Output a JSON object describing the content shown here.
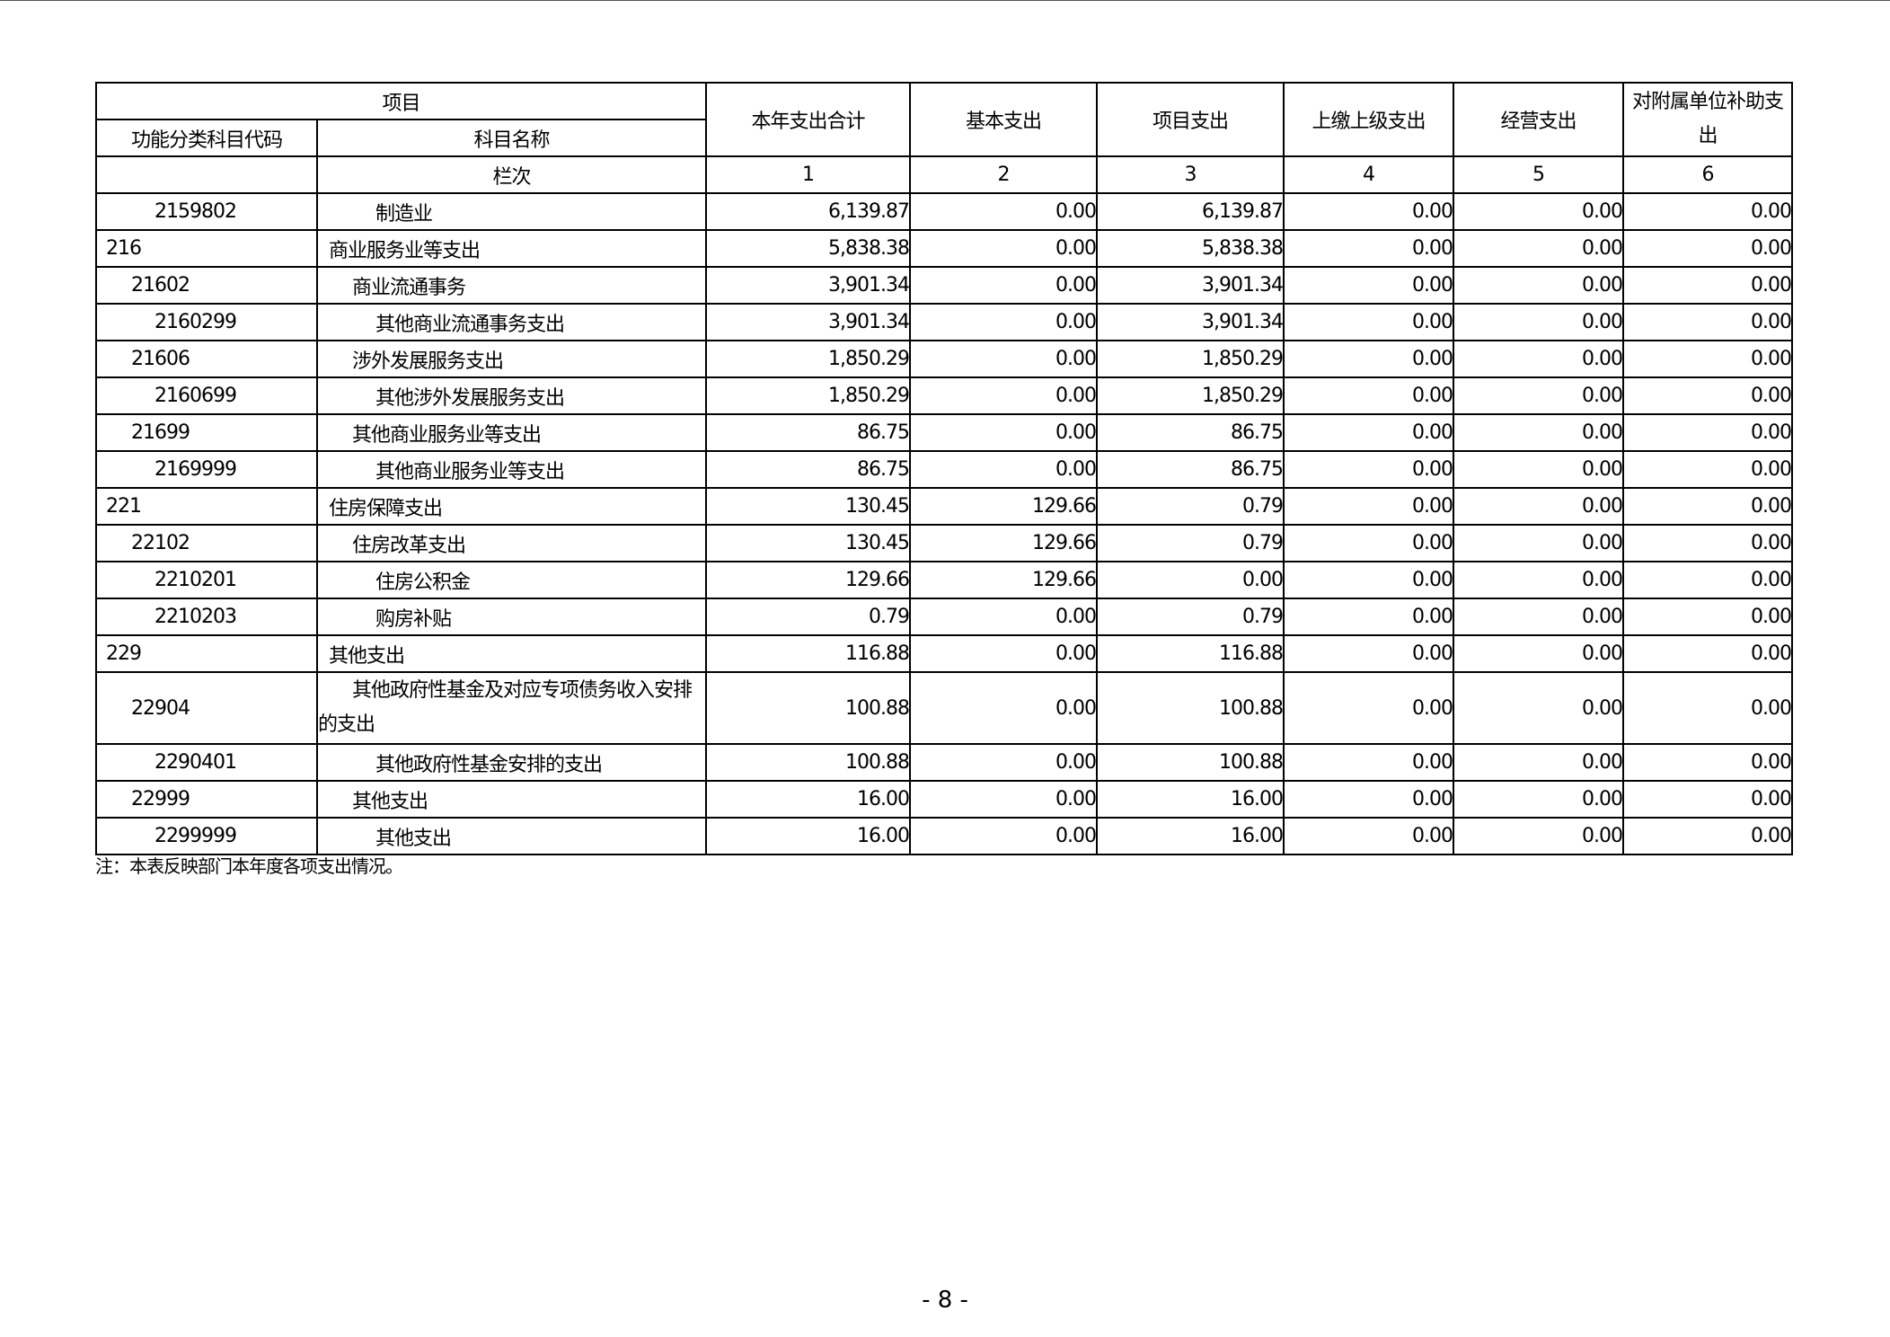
{
  "header": {
    "project": "项目",
    "code": "功能分类科目代码",
    "name": "科目名称",
    "row_index_label": "栏次",
    "columns": [
      "本年支出合计",
      "基本支出",
      "项目支出",
      "上缴上级支出",
      "经营支出",
      "对附属单位补助支出"
    ],
    "column_numbers": [
      "1",
      "2",
      "3",
      "4",
      "5",
      "6"
    ]
  },
  "rows": [
    {
      "code": "2159802",
      "level": 2,
      "name": "制造业",
      "values": [
        "6,139.87",
        "0.00",
        "6,139.87",
        "0.00",
        "0.00",
        "0.00"
      ]
    },
    {
      "code": "216",
      "level": 0,
      "name": "商业服务业等支出",
      "values": [
        "5,838.38",
        "0.00",
        "5,838.38",
        "0.00",
        "0.00",
        "0.00"
      ]
    },
    {
      "code": "21602",
      "level": 1,
      "name": "商业流通事务",
      "values": [
        "3,901.34",
        "0.00",
        "3,901.34",
        "0.00",
        "0.00",
        "0.00"
      ]
    },
    {
      "code": "2160299",
      "level": 2,
      "name": "其他商业流通事务支出",
      "values": [
        "3,901.34",
        "0.00",
        "3,901.34",
        "0.00",
        "0.00",
        "0.00"
      ]
    },
    {
      "code": "21606",
      "level": 1,
      "name": "涉外发展服务支出",
      "values": [
        "1,850.29",
        "0.00",
        "1,850.29",
        "0.00",
        "0.00",
        "0.00"
      ]
    },
    {
      "code": "2160699",
      "level": 2,
      "name": "其他涉外发展服务支出",
      "values": [
        "1,850.29",
        "0.00",
        "1,850.29",
        "0.00",
        "0.00",
        "0.00"
      ]
    },
    {
      "code": "21699",
      "level": 1,
      "name": "其他商业服务业等支出",
      "values": [
        "86.75",
        "0.00",
        "86.75",
        "0.00",
        "0.00",
        "0.00"
      ]
    },
    {
      "code": "2169999",
      "level": 2,
      "name": "其他商业服务业等支出",
      "values": [
        "86.75",
        "0.00",
        "86.75",
        "0.00",
        "0.00",
        "0.00"
      ]
    },
    {
      "code": "221",
      "level": 0,
      "name": "住房保障支出",
      "values": [
        "130.45",
        "129.66",
        "0.79",
        "0.00",
        "0.00",
        "0.00"
      ]
    },
    {
      "code": "22102",
      "level": 1,
      "name": "住房改革支出",
      "values": [
        "130.45",
        "129.66",
        "0.79",
        "0.00",
        "0.00",
        "0.00"
      ]
    },
    {
      "code": "2210201",
      "level": 2,
      "name": "住房公积金",
      "values": [
        "129.66",
        "129.66",
        "0.00",
        "0.00",
        "0.00",
        "0.00"
      ]
    },
    {
      "code": "2210203",
      "level": 2,
      "name": "购房补贴",
      "values": [
        "0.79",
        "0.00",
        "0.79",
        "0.00",
        "0.00",
        "0.00"
      ]
    },
    {
      "code": "229",
      "level": 0,
      "name": "其他支出",
      "values": [
        "116.88",
        "0.00",
        "116.88",
        "0.00",
        "0.00",
        "0.00"
      ]
    },
    {
      "code": "22904",
      "level": 1,
      "name": "其他政府性基金及对应专项债务收入安排的支出",
      "values": [
        "100.88",
        "0.00",
        "100.88",
        "0.00",
        "0.00",
        "0.00"
      ]
    },
    {
      "code": "2290401",
      "level": 2,
      "name": "其他政府性基金安排的支出",
      "values": [
        "100.88",
        "0.00",
        "100.88",
        "0.00",
        "0.00",
        "0.00"
      ]
    },
    {
      "code": "22999",
      "level": 1,
      "name": "其他支出",
      "values": [
        "16.00",
        "0.00",
        "16.00",
        "0.00",
        "0.00",
        "0.00"
      ]
    },
    {
      "code": "2299999",
      "level": 2,
      "name": "其他支出",
      "values": [
        "16.00",
        "0.00",
        "16.00",
        "0.00",
        "0.00",
        "0.00"
      ]
    }
  ],
  "note": "注：本表反映部门本年度各项支出情况。",
  "page_number": "- 8 -"
}
